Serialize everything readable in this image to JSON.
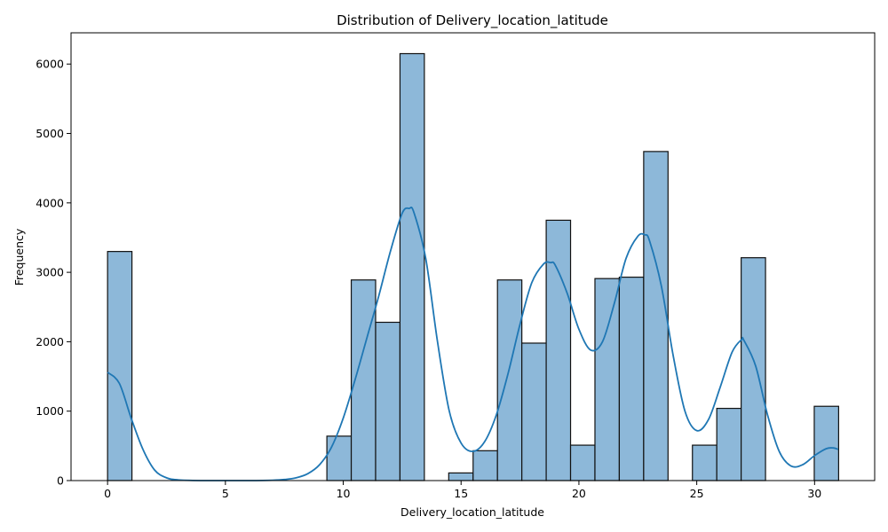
{
  "chart_data": {
    "type": "bar",
    "title": "Distribution of Delivery_location_latitude",
    "xlabel": "Delivery_location_latitude",
    "ylabel": "Frequency",
    "xlim": [
      -1.55,
      32.55
    ],
    "ylim": [
      0,
      6450
    ],
    "xticks": [
      0,
      5,
      10,
      15,
      20,
      25,
      30
    ],
    "yticks": [
      0,
      1000,
      2000,
      3000,
      4000,
      5000,
      6000
    ],
    "grid": false,
    "bar_color": "#8db8d9",
    "edge_color": "#111111",
    "kde_color": "#1f77b4",
    "bin_width": 1.034,
    "bins": [
      {
        "start": 0.0,
        "value": 3300
      },
      {
        "start": 1.034,
        "value": 0
      },
      {
        "start": 2.068,
        "value": 0
      },
      {
        "start": 3.102,
        "value": 0
      },
      {
        "start": 4.136,
        "value": 0
      },
      {
        "start": 5.17,
        "value": 0
      },
      {
        "start": 6.204,
        "value": 0
      },
      {
        "start": 7.238,
        "value": 0
      },
      {
        "start": 8.272,
        "value": 0
      },
      {
        "start": 9.306,
        "value": 640
      },
      {
        "start": 10.34,
        "value": 2890
      },
      {
        "start": 11.374,
        "value": 2280
      },
      {
        "start": 12.408,
        "value": 6150
      },
      {
        "start": 13.442,
        "value": 0
      },
      {
        "start": 14.476,
        "value": 110
      },
      {
        "start": 15.51,
        "value": 430
      },
      {
        "start": 16.544,
        "value": 2890
      },
      {
        "start": 17.578,
        "value": 1980
      },
      {
        "start": 18.612,
        "value": 3750
      },
      {
        "start": 19.646,
        "value": 510
      },
      {
        "start": 20.68,
        "value": 2910
      },
      {
        "start": 21.714,
        "value": 2930
      },
      {
        "start": 22.748,
        "value": 4740
      },
      {
        "start": 23.782,
        "value": 0
      },
      {
        "start": 24.816,
        "value": 510
      },
      {
        "start": 25.85,
        "value": 1040
      },
      {
        "start": 26.884,
        "value": 3210
      },
      {
        "start": 27.918,
        "value": 0
      },
      {
        "start": 28.952,
        "value": 0
      },
      {
        "start": 29.986,
        "value": 1070
      }
    ],
    "kde": {
      "x": [
        0,
        0.5,
        1.0,
        1.5,
        2.0,
        2.5,
        3.0,
        4.0,
        5.0,
        6.0,
        7.0,
        7.5,
        8.0,
        8.5,
        9.0,
        9.5,
        10.0,
        10.5,
        11.0,
        11.5,
        12.0,
        12.5,
        12.8,
        13.0,
        13.5,
        14.0,
        14.5,
        15.0,
        15.5,
        16.0,
        16.5,
        17.0,
        17.5,
        18.0,
        18.5,
        18.8,
        19.0,
        19.5,
        20.0,
        20.5,
        21.0,
        21.5,
        22.0,
        22.5,
        22.8,
        23.0,
        23.5,
        24.0,
        24.5,
        25.0,
        25.5,
        26.0,
        26.5,
        26.9,
        27.0,
        27.5,
        28.0,
        28.5,
        29.0,
        29.5,
        30.0,
        30.5,
        30.8,
        31.0
      ],
      "y": [
        1560,
        1400,
        900,
        450,
        150,
        40,
        10,
        0,
        0,
        0,
        5,
        15,
        40,
        100,
        230,
        480,
        900,
        1450,
        2050,
        2650,
        3300,
        3850,
        3920,
        3860,
        3200,
        2000,
        1000,
        540,
        420,
        560,
        950,
        1550,
        2250,
        2850,
        3120,
        3140,
        3100,
        2700,
        2180,
        1880,
        2000,
        2550,
        3200,
        3520,
        3540,
        3450,
        2800,
        1800,
        1000,
        720,
        880,
        1350,
        1850,
        2030,
        2020,
        1650,
        950,
        420,
        210,
        230,
        360,
        460,
        470,
        450
      ]
    }
  }
}
